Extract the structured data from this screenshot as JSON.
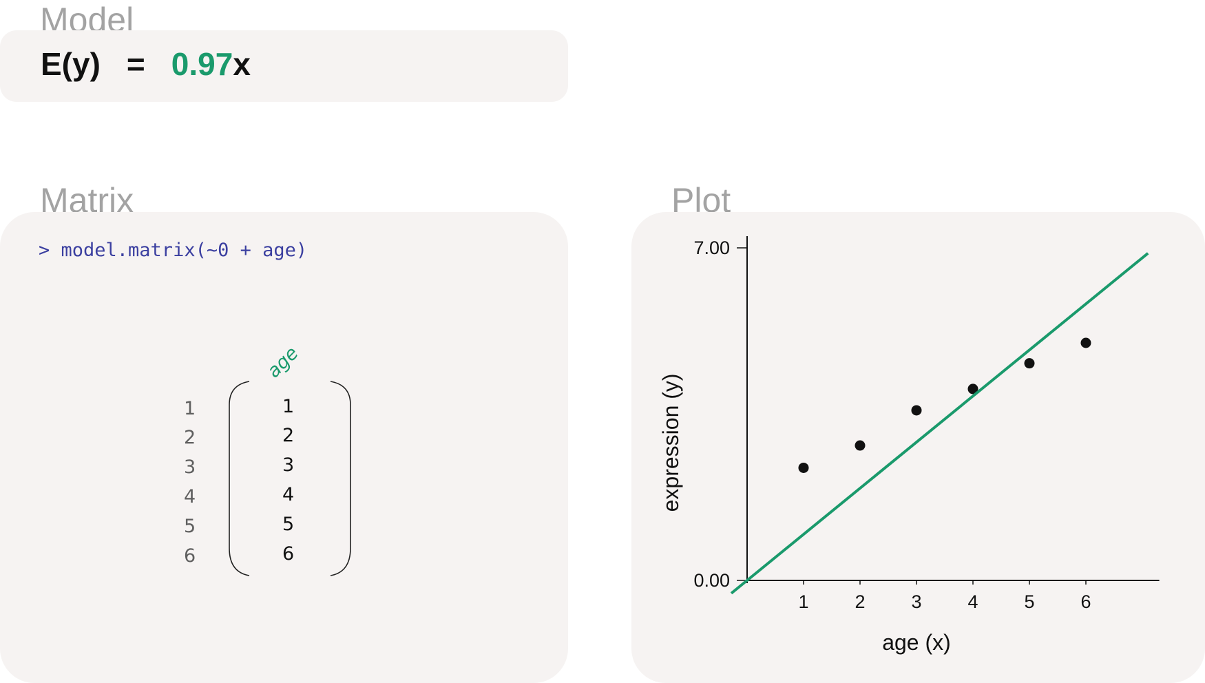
{
  "model": {
    "title": "Model",
    "equation": {
      "lhs": "E(y)",
      "sign": "=",
      "coefficient": "0.97",
      "variable": "x"
    }
  },
  "matrix": {
    "title": "Matrix",
    "code": "> model.matrix(~0 + age)",
    "column_header": "age",
    "row_indices": [
      "1",
      "2",
      "3",
      "4",
      "5",
      "6"
    ],
    "values": [
      "1",
      "2",
      "3",
      "4",
      "5",
      "6"
    ]
  },
  "plot": {
    "title": "Plot"
  },
  "colors": {
    "accent": "#1a9a6c",
    "panel_bg": "#f6f3f2",
    "title_gray": "#a3a3a3",
    "code_blue": "#3b3fa0"
  },
  "chart_data": {
    "type": "scatter",
    "xlabel": "age (x)",
    "ylabel": "expression (y)",
    "x_ticks": [
      "1",
      "2",
      "3",
      "4",
      "5",
      "6"
    ],
    "y_ticks": [
      "0.00",
      "7.00"
    ],
    "xlim": [
      0,
      7.3
    ],
    "ylim": [
      0,
      7
    ],
    "points": [
      {
        "x": 1,
        "y": 2.37
      },
      {
        "x": 2,
        "y": 2.84
      },
      {
        "x": 3,
        "y": 3.58
      },
      {
        "x": 4,
        "y": 4.03
      },
      {
        "x": 5,
        "y": 4.57
      },
      {
        "x": 6,
        "y": 5.0
      }
    ],
    "fit_line": {
      "slope": 0.97,
      "intercept": 0,
      "x_from": -0.28,
      "x_to": 7.1,
      "color": "#1a9a6c"
    }
  }
}
